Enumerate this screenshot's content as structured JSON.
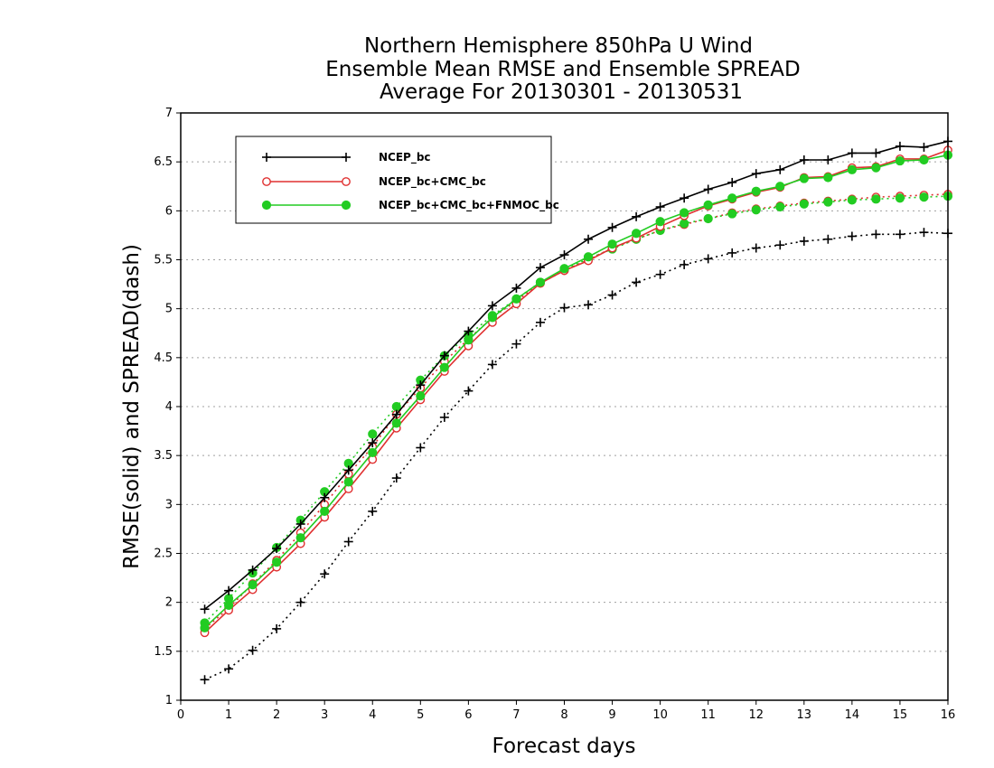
{
  "chart_data": {
    "type": "line",
    "title": [
      "Northern Hemisphere 850hPa U Wind",
      "Ensemble Mean RMSE and Ensemble SPREAD",
      "Average For 20130301 - 20130531"
    ],
    "xlabel": "Forecast days",
    "ylabel": "RMSE(solid) and SPREAD(dash)",
    "xlim": [
      0,
      16
    ],
    "ylim": [
      1,
      7
    ],
    "xticks": [
      0,
      1,
      2,
      3,
      4,
      5,
      6,
      7,
      8,
      9,
      10,
      11,
      12,
      13,
      14,
      15,
      16
    ],
    "yticks": [
      1,
      1.5,
      2,
      2.5,
      3,
      3.5,
      4,
      4.5,
      5,
      5.5,
      6,
      6.5,
      7
    ],
    "grid": true,
    "legend_position": "top-left",
    "x": [
      0.5,
      1,
      1.5,
      2,
      2.5,
      3,
      3.5,
      4,
      4.5,
      5,
      5.5,
      6,
      6.5,
      7,
      7.5,
      8,
      8.5,
      9,
      9.5,
      10,
      10.5,
      11,
      11.5,
      12,
      12.5,
      13,
      13.5,
      14,
      14.5,
      15,
      15.5,
      16
    ],
    "series": [
      {
        "name": "NCEP_bc",
        "color": "#000000",
        "marker": "plus",
        "rmse": [
          1.93,
          2.12,
          2.33,
          2.55,
          2.8,
          3.07,
          3.35,
          3.63,
          3.92,
          4.22,
          4.52,
          4.77,
          5.03,
          5.21,
          5.42,
          5.55,
          5.71,
          5.83,
          5.94,
          6.04,
          6.13,
          6.22,
          6.29,
          6.38,
          6.42,
          6.52,
          6.52,
          6.59,
          6.59,
          6.66,
          6.65,
          6.71
        ],
        "spread": [
          1.21,
          1.32,
          1.51,
          1.73,
          2.0,
          2.29,
          2.62,
          2.93,
          3.27,
          3.58,
          3.89,
          4.16,
          4.43,
          4.64,
          4.86,
          5.01,
          5.04,
          5.14,
          5.27,
          5.35,
          5.45,
          5.51,
          5.57,
          5.62,
          5.65,
          5.69,
          5.71,
          5.74,
          5.76,
          5.76,
          5.78,
          5.77
        ]
      },
      {
        "name": "NCEP_bc+CMC_bc",
        "color": "#e03030",
        "marker": "open-circle",
        "rmse": [
          1.69,
          1.92,
          2.13,
          2.36,
          2.6,
          2.87,
          3.16,
          3.46,
          3.78,
          4.07,
          4.36,
          4.62,
          4.86,
          5.05,
          5.26,
          5.39,
          5.49,
          5.62,
          5.72,
          5.84,
          5.95,
          6.05,
          6.12,
          6.19,
          6.24,
          6.34,
          6.35,
          6.44,
          6.45,
          6.53,
          6.53,
          6.62
        ],
        "spread": [
          1.73,
          1.94,
          2.19,
          2.43,
          2.71,
          3.0,
          3.31,
          3.59,
          3.92,
          4.19,
          4.46,
          4.69,
          4.91,
          5.08,
          5.26,
          5.39,
          5.5,
          5.62,
          5.71,
          5.8,
          5.86,
          5.92,
          5.98,
          6.02,
          6.05,
          6.08,
          6.1,
          6.12,
          6.14,
          6.15,
          6.16,
          6.17
        ]
      },
      {
        "name": "NCEP_bc+CMC_bc+FNMOC_bc",
        "color": "#22cc22",
        "marker": "filled-circle",
        "rmse": [
          1.74,
          1.97,
          2.18,
          2.41,
          2.66,
          2.93,
          3.23,
          3.53,
          3.83,
          4.11,
          4.4,
          4.68,
          4.91,
          5.1,
          5.27,
          5.41,
          5.53,
          5.66,
          5.77,
          5.89,
          5.98,
          6.06,
          6.13,
          6.2,
          6.25,
          6.33,
          6.34,
          6.42,
          6.44,
          6.51,
          6.52,
          6.57
        ],
        "spread": [
          1.79,
          2.04,
          2.3,
          2.56,
          2.84,
          3.13,
          3.42,
          3.72,
          4.0,
          4.27,
          4.52,
          4.73,
          4.93,
          5.1,
          5.27,
          5.4,
          5.51,
          5.61,
          5.71,
          5.8,
          5.87,
          5.92,
          5.97,
          6.01,
          6.04,
          6.07,
          6.09,
          6.11,
          6.12,
          6.13,
          6.14,
          6.15
        ]
      }
    ]
  }
}
